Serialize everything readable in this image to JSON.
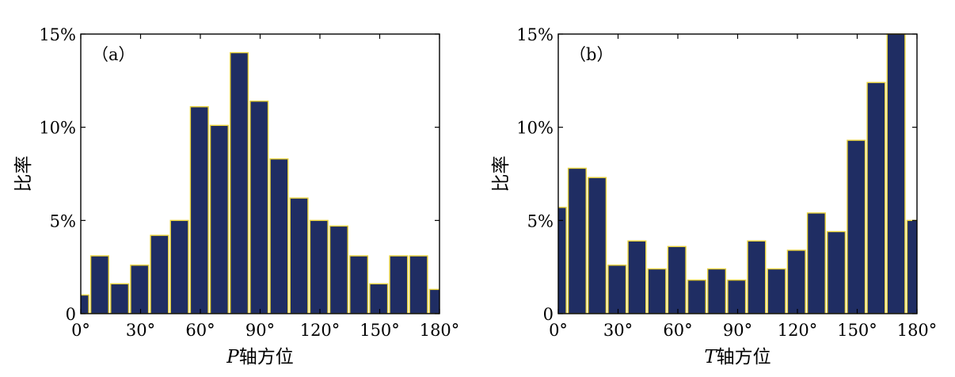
{
  "chart_data": [
    {
      "type": "bar",
      "panel_label": "（a）",
      "xlabel_var": "P",
      "xlabel_rest": "轴方位",
      "ylabel": "比率",
      "bin_width": 9,
      "xlim": [
        0,
        180
      ],
      "ylim": [
        0,
        15
      ],
      "xticks": [
        "0°",
        "30°",
        "60°",
        "90°",
        "120°",
        "150°",
        "180°"
      ],
      "xtick_values": [
        0,
        30,
        60,
        90,
        120,
        150,
        180
      ],
      "yticks": [
        "0",
        "5%",
        "10%",
        "15%"
      ],
      "ytick_values": [
        0,
        5,
        10,
        15
      ],
      "bin_starts": [
        -5,
        5,
        15,
        25,
        35,
        45,
        55,
        65,
        75,
        85,
        95,
        105,
        115,
        125,
        135,
        145,
        155,
        165,
        175
      ],
      "values": [
        1.0,
        3.1,
        1.6,
        2.6,
        4.2,
        5.0,
        11.1,
        10.1,
        14.0,
        11.4,
        8.3,
        6.2,
        5.0,
        4.7,
        3.1,
        1.6,
        3.1,
        3.1,
        1.3
      ]
    },
    {
      "type": "bar",
      "panel_label": "（b）",
      "xlabel_var": "T",
      "xlabel_rest": "轴方位",
      "ylabel": "比率",
      "bin_width": 9,
      "xlim": [
        0,
        180
      ],
      "ylim": [
        0,
        15
      ],
      "xticks": [
        "0°",
        "30°",
        "60°",
        "90°",
        "120°",
        "150°",
        "180°"
      ],
      "xtick_values": [
        0,
        30,
        60,
        90,
        120,
        150,
        180
      ],
      "yticks": [
        "0",
        "5%",
        "10%",
        "15%"
      ],
      "ytick_values": [
        0,
        5,
        10,
        15
      ],
      "bin_starts": [
        -5,
        5,
        15,
        25,
        35,
        45,
        55,
        65,
        75,
        85,
        95,
        105,
        115,
        125,
        135,
        145,
        155,
        165,
        175
      ],
      "values": [
        5.7,
        7.8,
        7.3,
        2.6,
        3.9,
        2.4,
        3.6,
        1.8,
        2.4,
        1.8,
        3.9,
        2.4,
        3.4,
        5.4,
        4.4,
        9.3,
        12.4,
        15.0,
        5.0
      ]
    }
  ]
}
